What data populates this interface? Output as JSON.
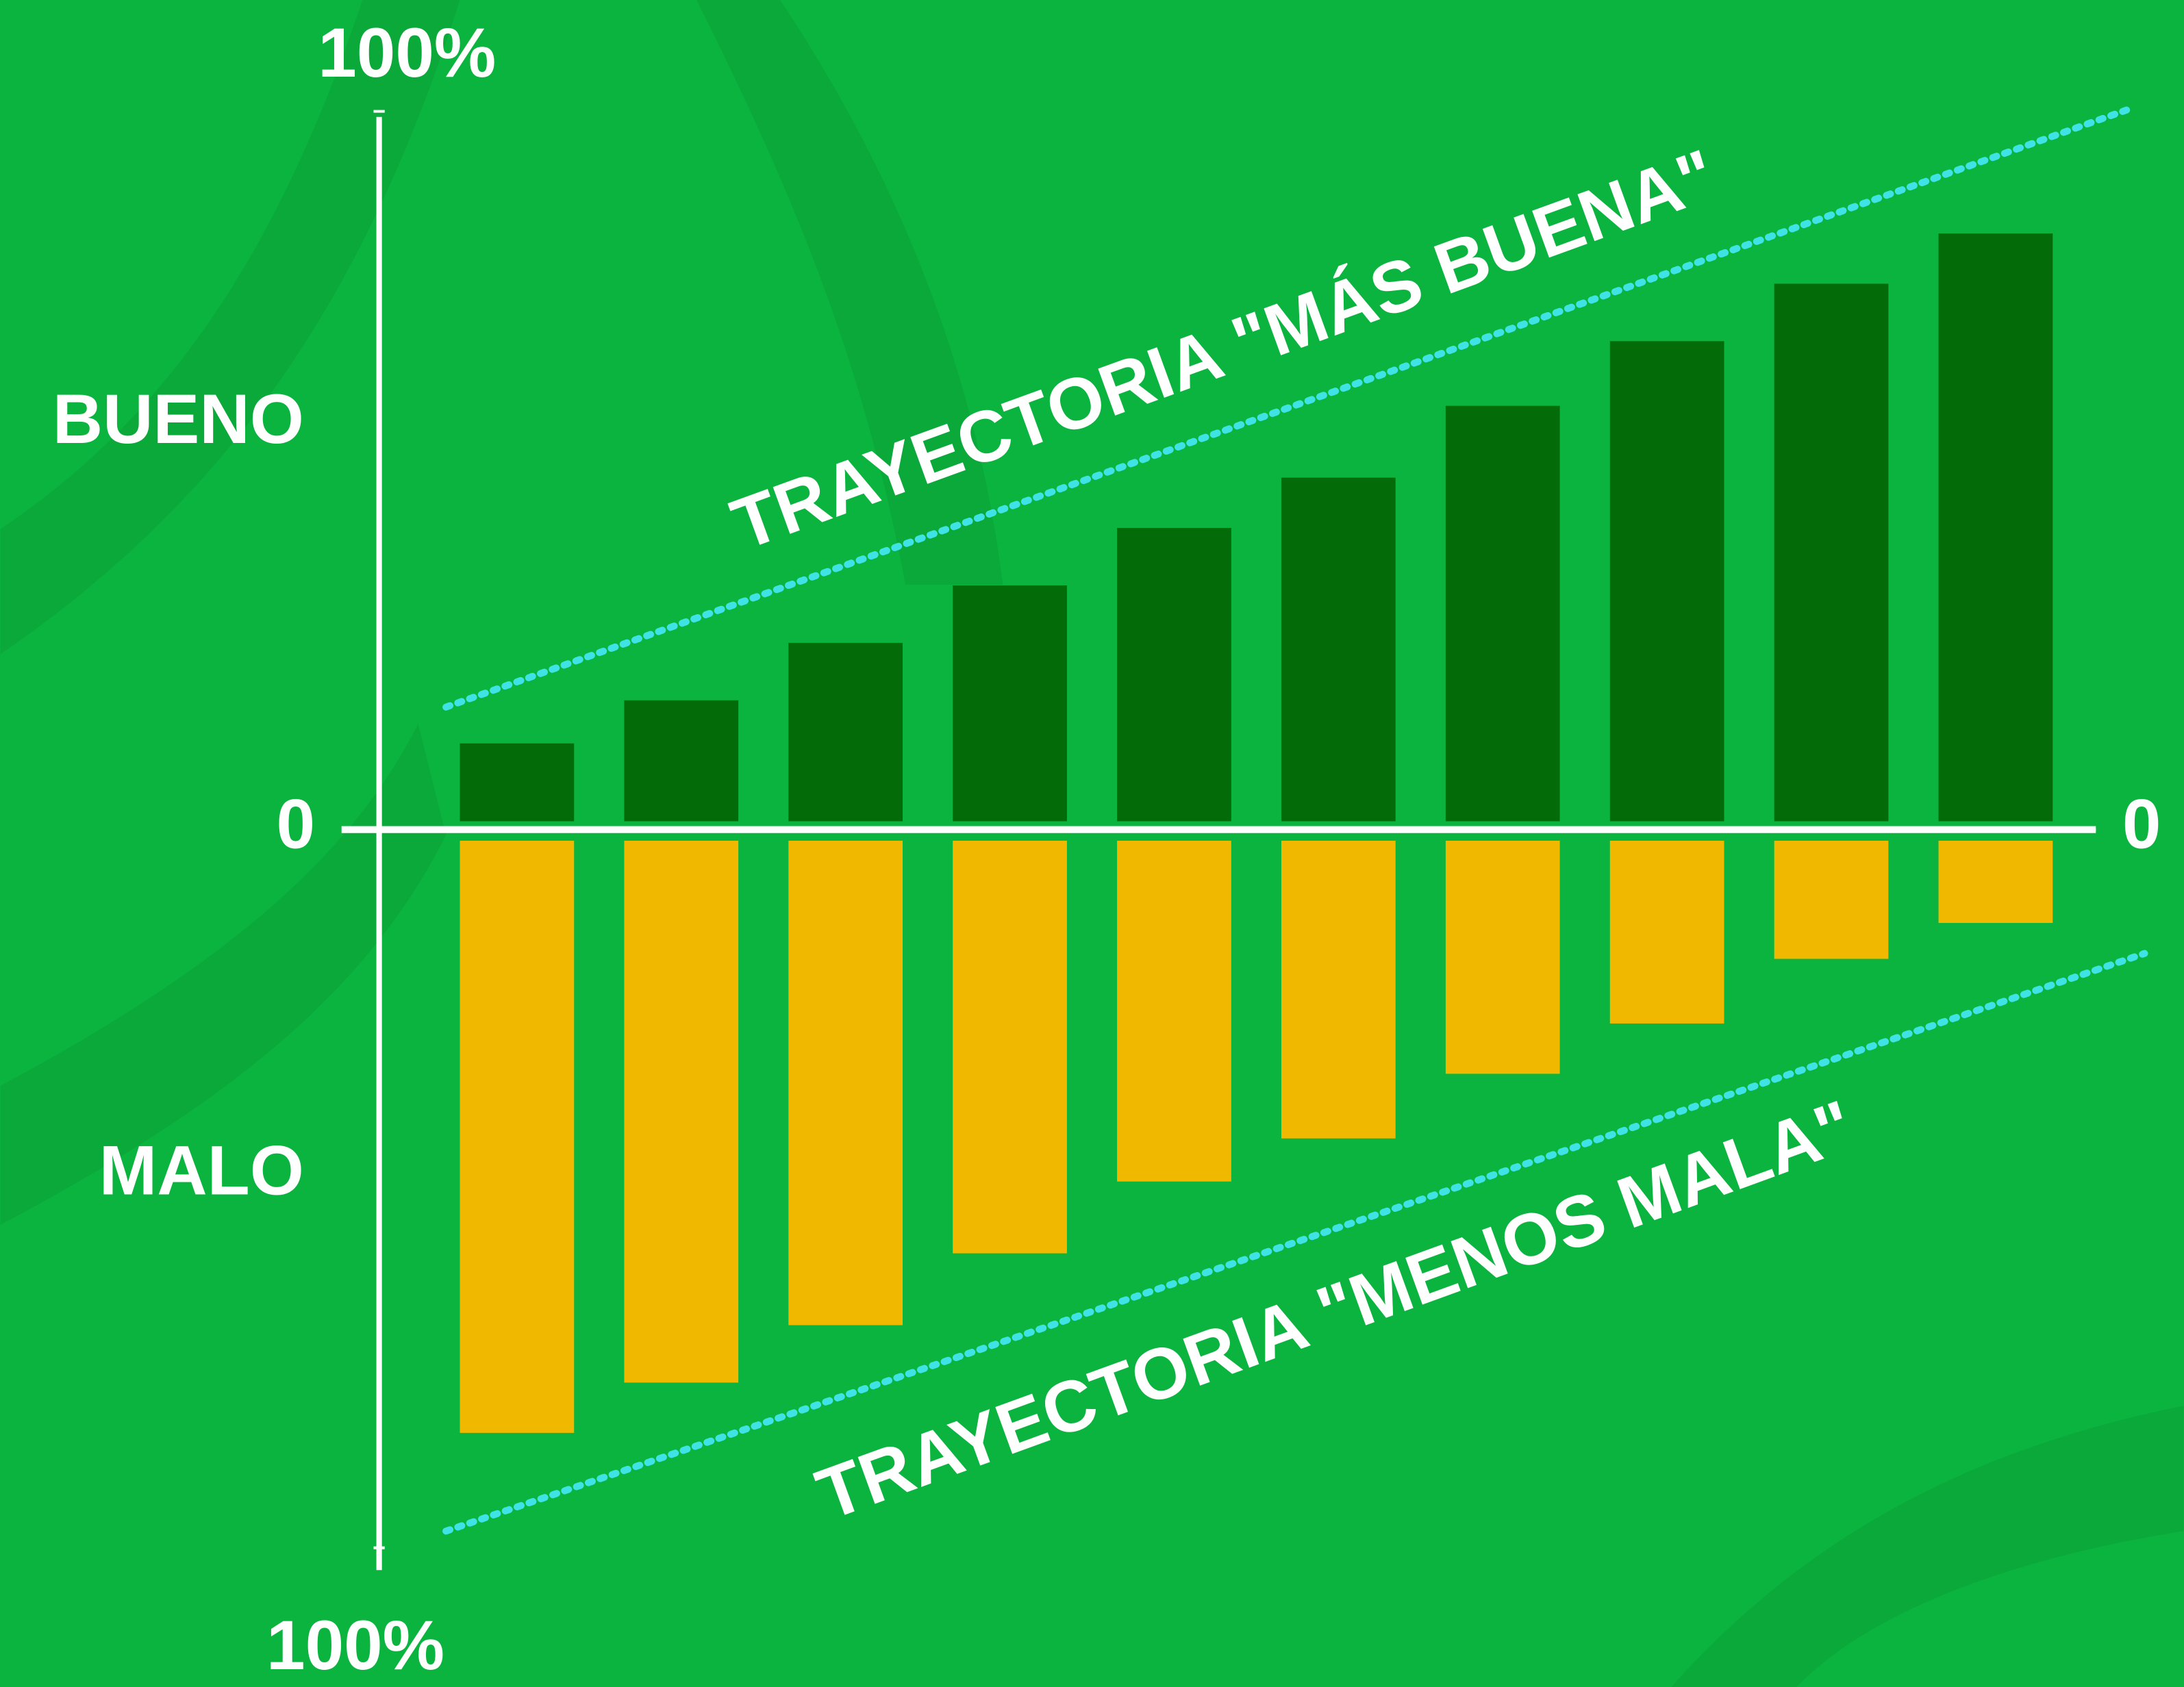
{
  "chart_data": {
    "type": "bar",
    "categories": [
      null,
      null,
      null,
      null,
      null,
      null,
      null,
      null,
      null,
      null
    ],
    "series": [
      {
        "name": "BUENO",
        "color": "#036b08",
        "values": [
          12,
          18,
          26,
          34,
          42,
          49,
          59,
          68,
          76,
          83
        ]
      },
      {
        "name": "MALO",
        "color": "#f0b900",
        "values": [
          -84,
          -77,
          -69,
          -59,
          -49,
          -43,
          -34,
          -27,
          -18,
          -13
        ]
      }
    ],
    "ylim": [
      -100,
      100
    ],
    "yticks": [
      {
        "value": -100,
        "label": "100%"
      },
      0,
      {
        "value": 100,
        "label": "100%"
      }
    ],
    "y2lim": [
      -100,
      100
    ],
    "y2ticks": [
      0
    ],
    "grid": false,
    "annotations": [
      {
        "text": "TRAYECTORIA \"MÁS BUENA\""
      },
      {
        "text": "TRAYECTORIA \"MENOS MALA\""
      }
    ]
  }
}
